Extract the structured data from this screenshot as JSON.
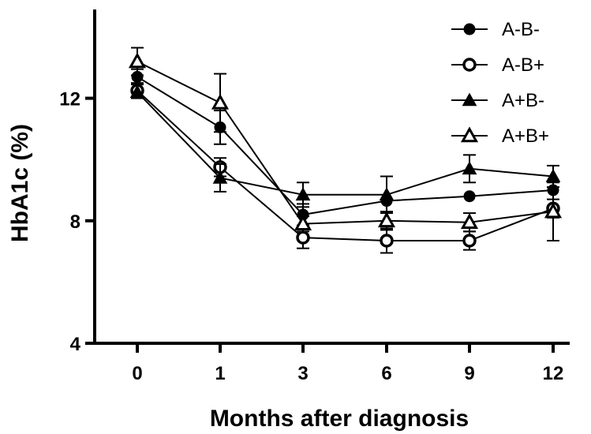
{
  "chart_data": {
    "type": "line",
    "title": "",
    "xlabel": "Months after diagnosis",
    "ylabel": "HbA1c (%)",
    "x": [
      "0",
      "1",
      "3",
      "6",
      "9",
      "12"
    ],
    "ylim": [
      4,
      14.9
    ],
    "yticks": [
      4,
      8,
      12
    ],
    "grid": false,
    "legend_position": "top-right",
    "series": [
      {
        "name": "A-B-",
        "marker": "circle-filled",
        "values": [
          12.7,
          11.05,
          8.2,
          8.65,
          8.8,
          9.0
        ],
        "error": [
          0.25,
          0.55,
          0.35,
          0.0,
          0.0,
          0.0
        ]
      },
      {
        "name": "A-B+",
        "marker": "circle-open",
        "values": [
          12.25,
          9.75,
          7.45,
          7.35,
          7.35,
          8.4
        ],
        "error": [
          0.25,
          0.3,
          0.35,
          0.4,
          0.3,
          0.3
        ]
      },
      {
        "name": "A+B-",
        "marker": "triangle-filled",
        "values": [
          12.2,
          9.4,
          8.85,
          8.85,
          9.7,
          9.45
        ],
        "error": [
          0.0,
          0.45,
          0.4,
          0.6,
          0.45,
          0.35
        ]
      },
      {
        "name": "A+B+",
        "marker": "triangle-open",
        "values": [
          13.2,
          11.85,
          7.9,
          8.0,
          7.95,
          8.3
        ],
        "error": [
          0.45,
          0.95,
          0.25,
          0.3,
          0.3,
          0.95
        ]
      }
    ]
  }
}
